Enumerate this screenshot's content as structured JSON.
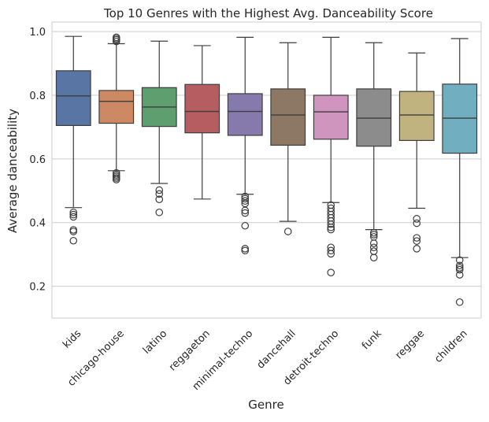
{
  "chart_data": {
    "type": "box",
    "title": "Top 10 Genres with the Highest Avg. Danceability Score",
    "xlabel": "Genre",
    "ylabel": "Average danceability",
    "ylim": [
      0.1,
      1.03
    ],
    "yticks": [
      0.2,
      0.4,
      0.6,
      0.8,
      1.0
    ],
    "ytick_labels": [
      "0.2",
      "0.4",
      "0.6",
      "0.8",
      "1.0"
    ],
    "grid": "horizontal",
    "legend": "none",
    "categories": [
      "kids",
      "chicago-house",
      "latino",
      "reggaeton",
      "minimal-techno",
      "dancehall",
      "detroit-techno",
      "funk",
      "reggae",
      "children"
    ],
    "boxes": [
      {
        "genre": "kids",
        "color": "#5975a4",
        "whisker_low": 0.447,
        "q1": 0.705,
        "median": 0.798,
        "q3": 0.877,
        "whisker_high": 0.985,
        "outliers": [
          0.432,
          0.425,
          0.418,
          0.377,
          0.372,
          0.343
        ]
      },
      {
        "genre": "chicago-house",
        "color": "#cc8963",
        "whisker_low": 0.563,
        "q1": 0.712,
        "median": 0.781,
        "q3": 0.815,
        "whisker_high": 0.962,
        "outliers": [
          0.982,
          0.978,
          0.974,
          0.969,
          0.556,
          0.55,
          0.545,
          0.54,
          0.535
        ]
      },
      {
        "genre": "latino",
        "color": "#5f9e6e",
        "whisker_low": 0.523,
        "q1": 0.702,
        "median": 0.763,
        "q3": 0.824,
        "whisker_high": 0.97,
        "outliers": [
          0.502,
          0.49,
          0.473,
          0.432
        ]
      },
      {
        "genre": "reggaeton",
        "color": "#b55d60",
        "whisker_low": 0.474,
        "q1": 0.682,
        "median": 0.749,
        "q3": 0.834,
        "whisker_high": 0.956,
        "outliers": []
      },
      {
        "genre": "minimal-techno",
        "color": "#857aab",
        "whisker_low": 0.489,
        "q1": 0.674,
        "median": 0.749,
        "q3": 0.805,
        "whisker_high": 0.982,
        "outliers": [
          0.482,
          0.475,
          0.468,
          0.46,
          0.438,
          0.43,
          0.39,
          0.318,
          0.312
        ]
      },
      {
        "genre": "dancehall",
        "color": "#8d7866",
        "whisker_low": 0.404,
        "q1": 0.643,
        "median": 0.738,
        "q3": 0.82,
        "whisker_high": 0.965,
        "outliers": [
          0.372
        ]
      },
      {
        "genre": "detroit-techno",
        "color": "#d095bf",
        "whisker_low": 0.463,
        "q1": 0.662,
        "median": 0.748,
        "q3": 0.8,
        "whisker_high": 0.982,
        "outliers": [
          0.455,
          0.445,
          0.435,
          0.425,
          0.415,
          0.405,
          0.395,
          0.385,
          0.378,
          0.322,
          0.312,
          0.302,
          0.243
        ]
      },
      {
        "genre": "funk",
        "color": "#8c8c8c",
        "whisker_low": 0.378,
        "q1": 0.64,
        "median": 0.728,
        "q3": 0.82,
        "whisker_high": 0.965,
        "outliers": [
          0.368,
          0.362,
          0.355,
          0.335,
          0.322,
          0.31,
          0.29
        ]
      },
      {
        "genre": "reggae",
        "color": "#c1b37f",
        "whisker_low": 0.445,
        "q1": 0.658,
        "median": 0.738,
        "q3": 0.812,
        "whisker_high": 0.933,
        "outliers": [
          0.412,
          0.398,
          0.352,
          0.342,
          0.318
        ]
      },
      {
        "genre": "children",
        "color": "#71aec0",
        "whisker_low": 0.29,
        "q1": 0.618,
        "median": 0.728,
        "q3": 0.835,
        "whisker_high": 0.978,
        "outliers": [
          0.282,
          0.265,
          0.258,
          0.252,
          0.236,
          0.15
        ]
      }
    ]
  }
}
